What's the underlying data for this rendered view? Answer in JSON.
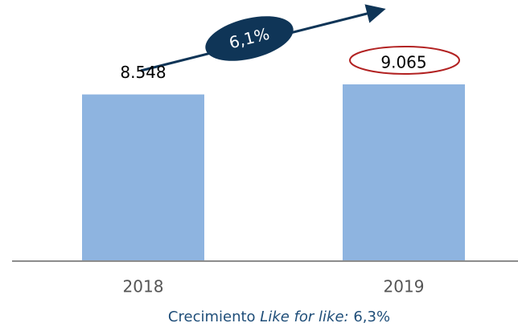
{
  "chart_data": {
    "type": "bar",
    "categories": [
      "2018",
      "2019"
    ],
    "values": [
      8548,
      9065
    ],
    "value_labels": [
      "8.548",
      "9.065"
    ],
    "color": "#8eb4e0",
    "annotations": [
      "6,1%"
    ],
    "footnote": {
      "text": "Crecimiento",
      "emphasis": "Like for like:",
      "value": "6,3%"
    }
  }
}
